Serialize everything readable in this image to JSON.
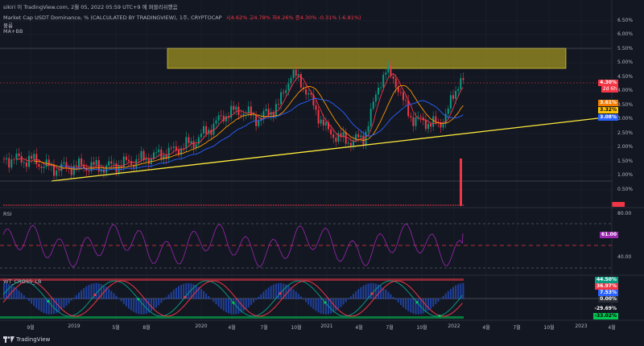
{
  "top_bar": {
    "credit": "sikiri 이 TradingView.com, 2월 05, 2022 05:59 UTC+9 에 퍼블리쉬했음"
  },
  "legend": {
    "title_line": "Market Cap USDT Dominance, % (CALCULATED BY TRADINGVIEW), 1주, CRYPTOCAP",
    "ohlc": "시4.62%  고4.78%  저4.26%  종4.30%  -0.31% (-6.81%)",
    "line2": "볼륨",
    "line3": "MA+BB"
  },
  "price_axis": {
    "ticks": [
      "6.50%",
      "6.00%",
      "5.50%",
      "5.00%",
      "4.50%",
      "4.00%",
      "3.50%",
      "3.00%",
      "2.50%",
      "2.00%",
      "1.50%",
      "1.00%",
      "0.50%"
    ]
  },
  "price_tags": [
    {
      "label": "4.30%",
      "sub": "2d 6h",
      "color": "#f23645"
    },
    {
      "label": "3.61%",
      "color": "#f57c00"
    },
    {
      "label": "3.32%",
      "color": "#ffc107"
    },
    {
      "label": "3.08%",
      "color": "#2962ff"
    }
  ],
  "rsi": {
    "title": "RSI",
    "ticks": [
      "80.00",
      "40.00"
    ],
    "tag": "61.00",
    "tag_color": "#9c27b0"
  },
  "wt": {
    "title": "WT_CROSS_LB",
    "tags": [
      {
        "label": "44.50%",
        "color": "#089981"
      },
      {
        "label": "36.97%",
        "color": "#f23645"
      },
      {
        "label": "7.53%",
        "color": "#2962ff"
      },
      {
        "label": "0.00%",
        "color": "#2a2e39"
      },
      {
        "label": "-29.69%",
        "color": "#131722"
      },
      {
        "label": "-33.02%",
        "color": "#00c853"
      }
    ]
  },
  "time_axis": {
    "labels": [
      "9월",
      "2019",
      "5월",
      "8월",
      "2020",
      "4월",
      "7월",
      "10월",
      "2021",
      "4월",
      "7월",
      "10월",
      "2022",
      "4월",
      "7월",
      "10월",
      "2023",
      "4월"
    ]
  },
  "footer": {
    "brand": "TradingView"
  },
  "chart_data": {
    "type": "candlestick",
    "title": "Market Cap USDT Dominance, % (CALCULATED BY TRADINGVIEW), 1주, CRYPTOCAP",
    "x": [
      "2018-08",
      "2018-09",
      "2018-12",
      "2019-03",
      "2019-06",
      "2019-09",
      "2019-12",
      "2020-02",
      "2020-03",
      "2020-05",
      "2020-07",
      "2020-09",
      "2020-10",
      "2020-12",
      "2021-01",
      "2021-03",
      "2021-05",
      "2021-06",
      "2021-07",
      "2021-09",
      "2021-11",
      "2021-12",
      "2022-01",
      "2022-02"
    ],
    "close": [
      1.6,
      1.55,
      1.25,
      1.35,
      1.3,
      1.55,
      1.85,
      2.2,
      3.1,
      3.2,
      3.2,
      3.6,
      4.4,
      3.2,
      2.55,
      2.25,
      4.5,
      3.8,
      4.6,
      3.0,
      2.9,
      3.3,
      4.6,
      4.3
    ],
    "ylim": [
      0.5,
      6.5
    ],
    "levels": {
      "resistance_zone": [
        4.8,
        5.5
      ],
      "last_close": 4.3,
      "ma_orange": 3.61,
      "ma_yellow": 3.32,
      "ma_blue": 3.08
    },
    "trendline": [
      {
        "x": "2018-09",
        "y": 0.85
      },
      {
        "x": "2023-06",
        "y": 3.05
      }
    ],
    "rsi": {
      "upper": 70,
      "mid": 50,
      "lower": 30,
      "last": 61.0
    },
    "wt": {
      "wt1": 44.5,
      "wt2": 36.97,
      "diff": 7.53
    }
  }
}
